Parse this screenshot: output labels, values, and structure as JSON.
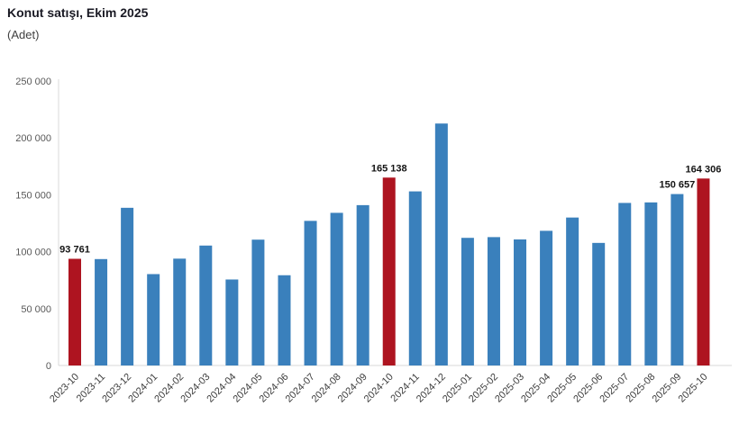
{
  "header": {
    "title": "Konut satışı, Ekim 2025",
    "subtitle": "(Adet)"
  },
  "colors": {
    "bar_default": "#3a80bc",
    "bar_highlight": "#ae1420",
    "axis": "#d9d9d9",
    "title_text": "#1a1a24",
    "ytick_text": "#595959",
    "xtick_text": "#3d3d3d",
    "data_label_text": "#141414"
  },
  "chart_data": {
    "type": "bar",
    "title": "Konut satışı, Ekim 2025",
    "subtitle": "(Adet)",
    "xlabel": "",
    "ylabel": "Adet",
    "ylim": [
      0,
      250000
    ],
    "grid": false,
    "legend": false,
    "categories": [
      "2023-10",
      "2023-11",
      "2023-12",
      "2024-01",
      "2024-02",
      "2024-03",
      "2024-04",
      "2024-05",
      "2024-06",
      "2024-07",
      "2024-08",
      "2024-09",
      "2024-10",
      "2024-11",
      "2024-12",
      "2025-01",
      "2025-02",
      "2025-03",
      "2025-04",
      "2025-05",
      "2025-06",
      "2025-07",
      "2025-08",
      "2025-09",
      "2025-10"
    ],
    "values": [
      93761,
      93514,
      138577,
      80308,
      93902,
      105394,
      75569,
      110588,
      79313,
      127088,
      134155,
      140919,
      165138,
      153014,
      212637,
      112173,
      112818,
      110795,
      118359,
      130025,
      107723,
      142858,
      143319,
      150657,
      164306
    ],
    "highlighted_categories": [
      "2023-10",
      "2024-10",
      "2025-10"
    ],
    "data_labels": {
      "2023-10": "93 761",
      "2024-10": "165 138",
      "2025-09": "150 657",
      "2025-10": "164 306"
    },
    "yticks": [
      {
        "value": 0,
        "label": "0"
      },
      {
        "value": 50000,
        "label": "50 000"
      },
      {
        "value": 100000,
        "label": "100 000"
      },
      {
        "value": 150000,
        "label": "150 000"
      },
      {
        "value": 200000,
        "label": "200 000"
      },
      {
        "value": 250000,
        "label": "250 000"
      }
    ]
  }
}
